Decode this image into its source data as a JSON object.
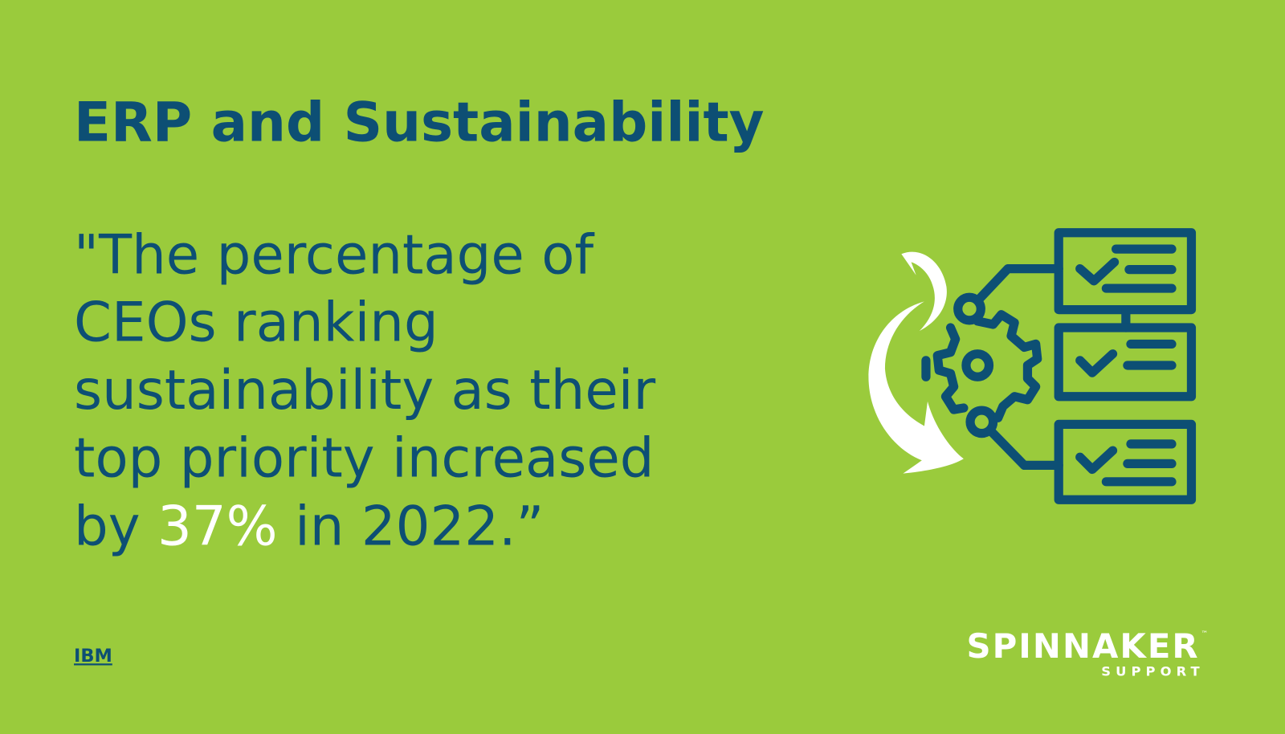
{
  "title": "ERP and Sustainability",
  "quote": {
    "lines": [
      "\"The percentage of",
      "CEOs ranking",
      "sustainability as their",
      "top priority increased"
    ],
    "last_line": {
      "prefix": "by",
      "highlight": "37%",
      "suffix": "in 2022.”"
    }
  },
  "source": "IBM",
  "logo": {
    "name": "SPINNAKER",
    "trademark": "™",
    "tagline": "SUPPORT"
  }
}
